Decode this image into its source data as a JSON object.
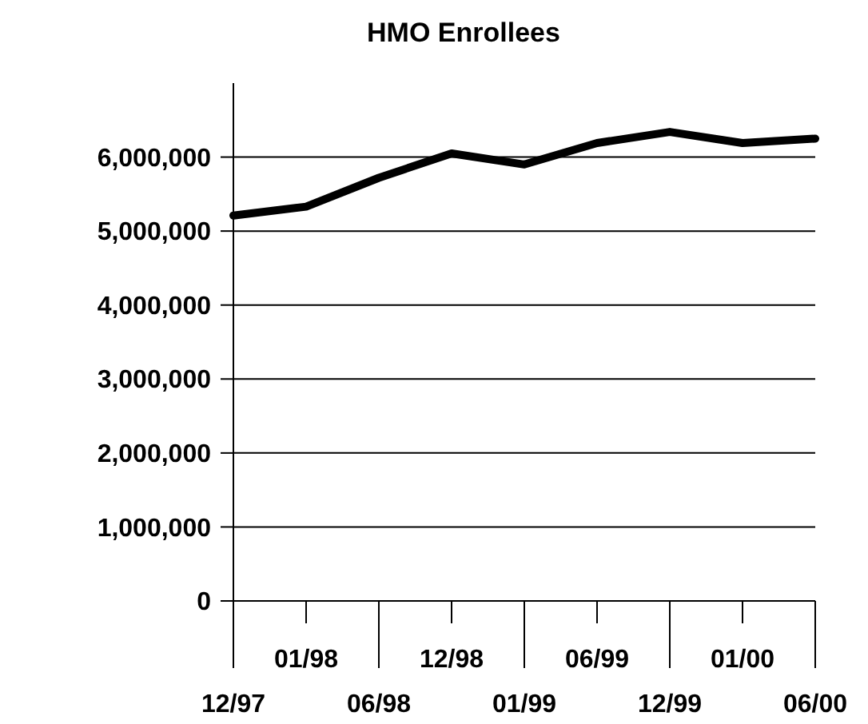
{
  "chart_data": {
    "type": "line",
    "title": "HMO Enrollees",
    "categories": [
      "12/97",
      "01/98",
      "06/98",
      "12/98",
      "01/99",
      "06/99",
      "12/99",
      "01/00",
      "06/00"
    ],
    "series": [
      {
        "color": "#000000",
        "values": [
          5210000,
          5330000,
          5720000,
          6050000,
          5900000,
          6190000,
          6340000,
          6190000,
          6250000
        ]
      }
    ],
    "ylim": [
      0,
      7000000
    ],
    "yticks": [
      {
        "value": 0,
        "label": "0"
      },
      {
        "value": 1000000,
        "label": "1,000,000"
      },
      {
        "value": 2000000,
        "label": "2,000,000"
      },
      {
        "value": 3000000,
        "label": "3,000,000"
      },
      {
        "value": 4000000,
        "label": "4,000,000"
      },
      {
        "value": 5000000,
        "label": "5,000,000"
      },
      {
        "value": 6000000,
        "label": "6,000,000"
      }
    ],
    "grid": "y",
    "marker": "none",
    "line_style": "solid"
  }
}
